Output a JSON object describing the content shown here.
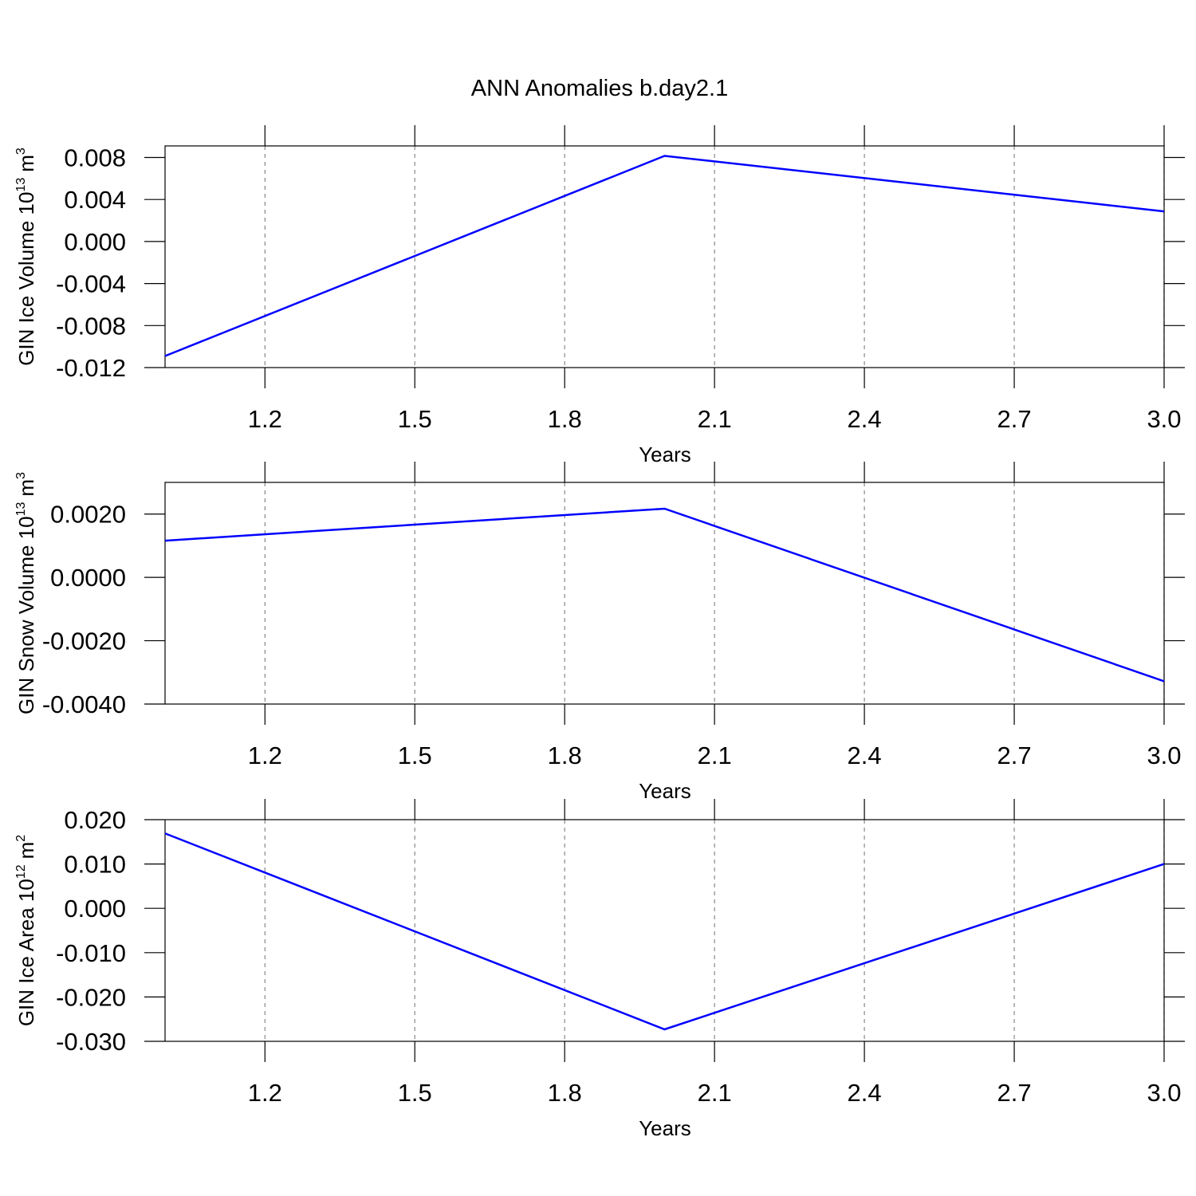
{
  "title": "ANN Anomalies b.day2.1",
  "chart_data": [
    {
      "type": "line",
      "x": [
        1,
        2,
        3
      ],
      "series": [
        {
          "color": "#0000ff",
          "values": [
            -0.0109,
            0.00815,
            0.00287
          ]
        }
      ],
      "xlim": [
        1,
        3
      ],
      "ylim": [
        -0.012,
        0.0091
      ],
      "xticks": [
        1.2,
        1.5,
        1.8,
        2.1,
        2.4,
        2.7,
        {
          "value": 3,
          "label": "3.0"
        }
      ],
      "yticks": [
        0.008,
        0.004,
        {
          "value": 0,
          "label": "0.000"
        },
        -0.004,
        -0.008,
        -0.012
      ],
      "xlabel": "Years",
      "ylabel": "GIN Ice Volume 10",
      "ylabel_exp": "13",
      "ylabel_unit": "m",
      "ylabel_unit_exp": "3",
      "grid": "x"
    },
    {
      "type": "line",
      "x": [
        1,
        2,
        3
      ],
      "series": [
        {
          "color": "#0000ff",
          "values": [
            0.00116,
            0.00217,
            -0.00328
          ]
        }
      ],
      "xlim": [
        1,
        3
      ],
      "ylim": [
        -0.004,
        0.003
      ],
      "xticks": [
        1.2,
        1.5,
        1.8,
        2.1,
        2.4,
        2.7,
        {
          "value": 3,
          "label": "3.0"
        }
      ],
      "yticks": [
        {
          "value": 0.002,
          "label": "0.0020"
        },
        {
          "value": 0,
          "label": "0.0000"
        },
        {
          "value": -0.002,
          "label": "-0.0020"
        },
        {
          "value": -0.004,
          "label": "-0.0040"
        }
      ],
      "xlabel": "Years",
      "ylabel": "GIN Snow Volume 10",
      "ylabel_exp": "13",
      "ylabel_unit": "m",
      "ylabel_unit_exp": "3",
      "grid": "x"
    },
    {
      "type": "line",
      "x": [
        1,
        2,
        3
      ],
      "series": [
        {
          "color": "#0000ff",
          "values": [
            0.0169,
            -0.0273,
            0.01
          ]
        }
      ],
      "xlim": [
        1,
        3
      ],
      "ylim": [
        -0.03,
        0.02
      ],
      "xticks": [
        1.2,
        1.5,
        1.8,
        2.1,
        2.4,
        2.7,
        {
          "value": 3,
          "label": "3.0"
        }
      ],
      "yticks": [
        {
          "value": 0.02,
          "label": "0.020"
        },
        {
          "value": 0.01,
          "label": "0.010"
        },
        {
          "value": 0,
          "label": "0.000"
        },
        {
          "value": -0.01,
          "label": "-0.010"
        },
        {
          "value": -0.02,
          "label": "-0.020"
        },
        {
          "value": -0.03,
          "label": "-0.030"
        }
      ],
      "xlabel": "Years",
      "ylabel": "GIN Ice Area 10",
      "ylabel_exp": "12",
      "ylabel_unit": "m",
      "ylabel_unit_exp": "2",
      "grid": "x"
    }
  ]
}
